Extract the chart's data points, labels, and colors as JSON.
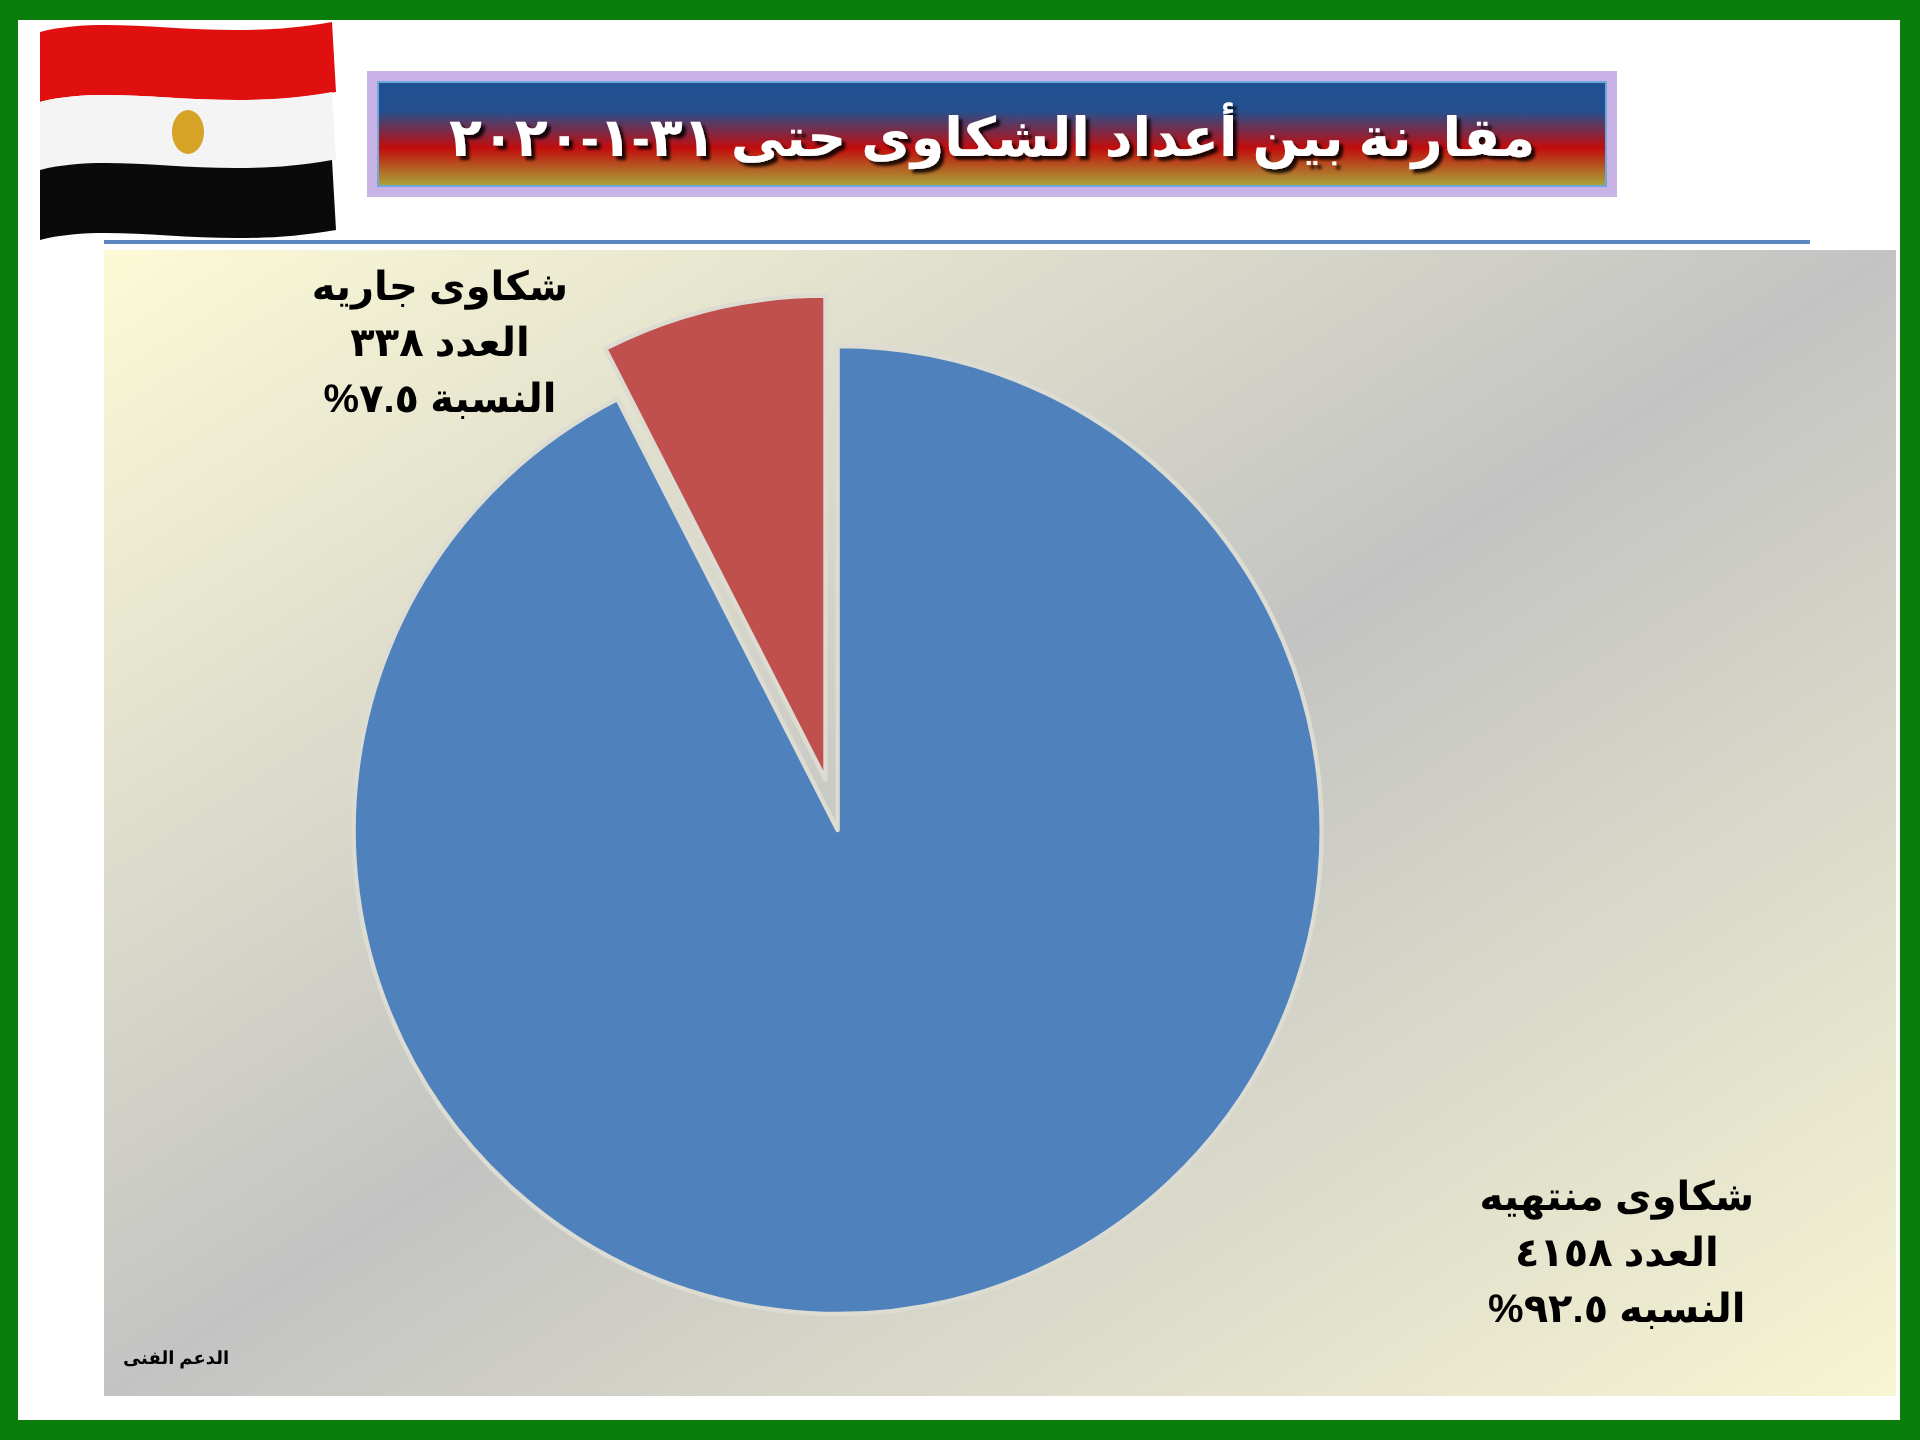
{
  "chart_data": {
    "type": "pie",
    "title": "مقارنة بين أعداد الشكاوى حتى ٣١-١-٢٠٢٠",
    "categories": [
      "شكاوى منتهيه",
      "شكاوى جاريه"
    ],
    "values": [
      4158,
      338
    ],
    "colors": [
      "#4f81bd",
      "#c0504d"
    ],
    "value_labels": [
      "العدد ٤١٥٨\nالنسبه ٩٢.٥%",
      "العدد ٣٣٨\nالنسبة ٧.٥%"
    ],
    "annotations": [
      "الدعم الفنى"
    ]
  }
}
